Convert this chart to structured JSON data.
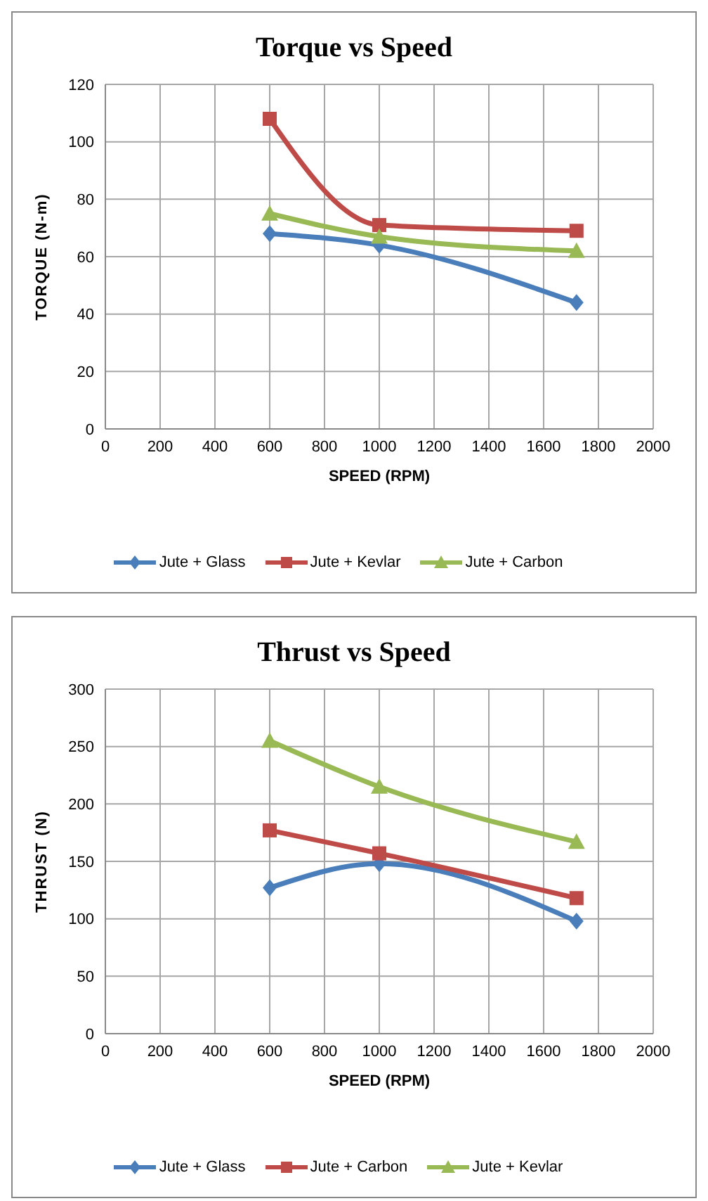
{
  "chart_data": [
    {
      "type": "line",
      "title": "Torque vs Speed",
      "xlabel": "SPEED (RPM)",
      "ylabel": "TORQUE (N-m)",
      "x": [
        600,
        1000,
        1720
      ],
      "xlim": [
        0,
        2000
      ],
      "xticks": [
        0,
        200,
        400,
        600,
        800,
        1000,
        1200,
        1400,
        1600,
        1800,
        2000
      ],
      "ylim": [
        0,
        120
      ],
      "yticks": [
        0,
        20,
        40,
        60,
        80,
        100,
        120
      ],
      "grid": true,
      "legend": "bottom",
      "series": [
        {
          "name": "Jute + Glass",
          "color": "#4a7ebb",
          "values": [
            68,
            64,
            44
          ],
          "marker": "diamond"
        },
        {
          "name": "Jute + Kevlar",
          "color": "#be4b48",
          "values": [
            108,
            71,
            69
          ],
          "marker": "square"
        },
        {
          "name": "Jute + Carbon",
          "color": "#98b954",
          "values": [
            75,
            67,
            62
          ],
          "marker": "triangle"
        }
      ]
    },
    {
      "type": "line",
      "title": "Thrust vs Speed",
      "xlabel": "SPEED (RPM)",
      "ylabel": "THRUST (N)",
      "x": [
        600,
        1000,
        1720
      ],
      "xlim": [
        0,
        2000
      ],
      "xticks": [
        0,
        200,
        400,
        600,
        800,
        1000,
        1200,
        1400,
        1600,
        1800,
        2000
      ],
      "ylim": [
        0,
        300
      ],
      "yticks": [
        0,
        50,
        100,
        150,
        200,
        250,
        300
      ],
      "grid": true,
      "legend": "bottom",
      "series": [
        {
          "name": "Jute + Glass",
          "color": "#4a7ebb",
          "values": [
            127,
            148,
            98
          ],
          "marker": "diamond"
        },
        {
          "name": "Jute + Carbon",
          "color": "#be4b48",
          "values": [
            177,
            157,
            118
          ],
          "marker": "square"
        },
        {
          "name": "Jute + Kevlar",
          "color": "#98b954",
          "values": [
            255,
            215,
            167
          ],
          "marker": "triangle"
        }
      ]
    }
  ]
}
